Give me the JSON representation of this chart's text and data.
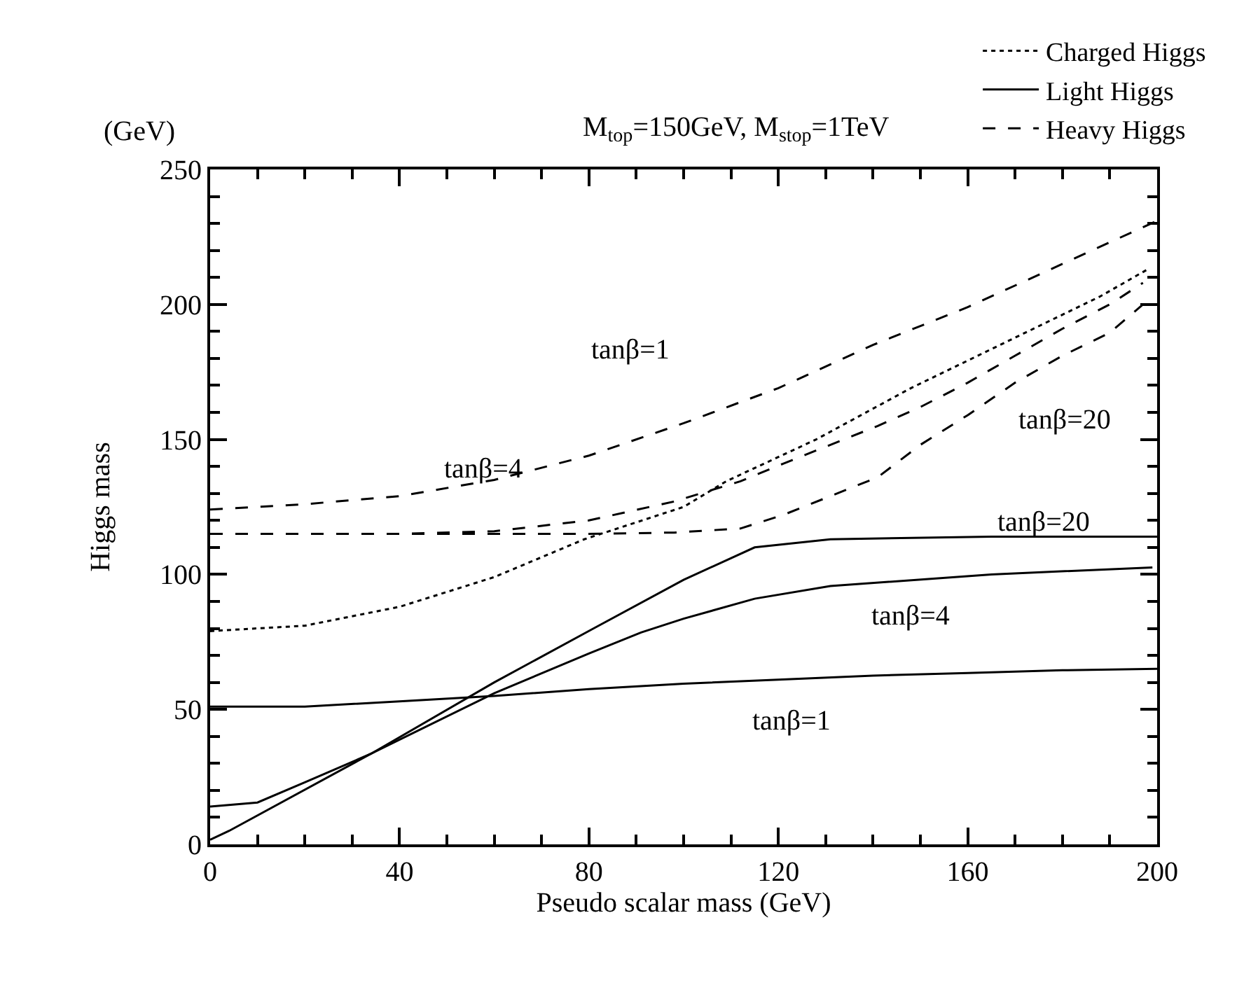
{
  "chart_data": {
    "type": "line",
    "subtitle": "M$_{top}$=150GeV, M$_{stop}$=1TeV",
    "xlabel": "Pseudo scalar mass (GeV)",
    "ylabel": "Higgs mass",
    "xlim": [
      0,
      200
    ],
    "xticks": [
      0,
      40,
      80,
      120,
      160,
      200
    ],
    "ylim": [
      0,
      250
    ],
    "yticks": [
      0,
      50,
      100,
      150,
      200,
      250
    ],
    "legend": "top right",
    "marker": "none",
    "annotations": [
      "(GeV)",
      "tanβ=1",
      "tanβ=4",
      "tanβ=20",
      "tanβ=20",
      "tanβ=4",
      "tanβ=1"
    ],
    "series": [
      {
        "name": "Charged Higgs",
        "color": "#000000",
        "line_style": "dotted",
        "x": [
          0,
          20,
          40,
          60,
          79,
          100,
          109,
          128,
          148,
          168,
          188,
          198
        ],
        "values": [
          79,
          81,
          88,
          99,
          113,
          125,
          134.5,
          150,
          169,
          186,
          203,
          213
        ]
      },
      {
        "name": "Light Higgs",
        "color": "#000000",
        "line_style": "solid",
        "x": [
          0,
          20,
          40,
          60,
          80,
          100,
          120,
          140,
          160,
          180,
          200
        ],
        "values": [
          51,
          51,
          53,
          55,
          57.5,
          59.5,
          61,
          62.5,
          63.5,
          64.5,
          65
        ]
      },
      {
        "color": "#000000",
        "line_style": "solid",
        "x": [
          0,
          10,
          20,
          34,
          60,
          80,
          91,
          100,
          115,
          131,
          165,
          199
        ],
        "values": [
          14,
          15.5,
          23,
          33.6,
          56,
          70.7,
          78.5,
          83.6,
          91,
          95.7,
          100,
          102.6
        ]
      },
      {
        "color": "#000000",
        "line_style": "solid",
        "x": [
          0,
          4,
          34,
          60,
          81,
          100,
          115,
          131,
          165,
          200
        ],
        "values": [
          1.7,
          5,
          33.6,
          60,
          80,
          98,
          110,
          113,
          114,
          114
        ]
      },
      {
        "name": "Heavy Higgs",
        "color": "#000000",
        "line_style": "dashed",
        "x": [
          0,
          20,
          40,
          60,
          80,
          100,
          120,
          140,
          160,
          180,
          200
        ],
        "values": [
          124,
          126,
          129,
          135,
          144,
          156,
          169,
          185,
          199,
          215,
          231
        ]
      },
      {
        "color": "#000000",
        "line_style": "dashed",
        "x": [
          0,
          20,
          40,
          60,
          80,
          98,
          112,
          121,
          131,
          141,
          150,
          160,
          170,
          180,
          190,
          197
        ],
        "values": [
          115,
          115,
          115,
          116,
          120,
          127,
          134.5,
          141,
          148,
          155,
          162,
          171,
          181,
          191,
          200,
          208
        ]
      },
      {
        "color": "#000000",
        "line_style": "dashed",
        "x": [
          0,
          20,
          40,
          60,
          80,
          98,
          112,
          121,
          131,
          141,
          150,
          160,
          170,
          180,
          190,
          197
        ],
        "values": [
          115,
          115,
          115,
          115,
          115,
          115.5,
          117,
          122,
          129,
          136,
          148,
          159,
          171,
          181,
          189.5,
          200
        ]
      }
    ]
  }
}
